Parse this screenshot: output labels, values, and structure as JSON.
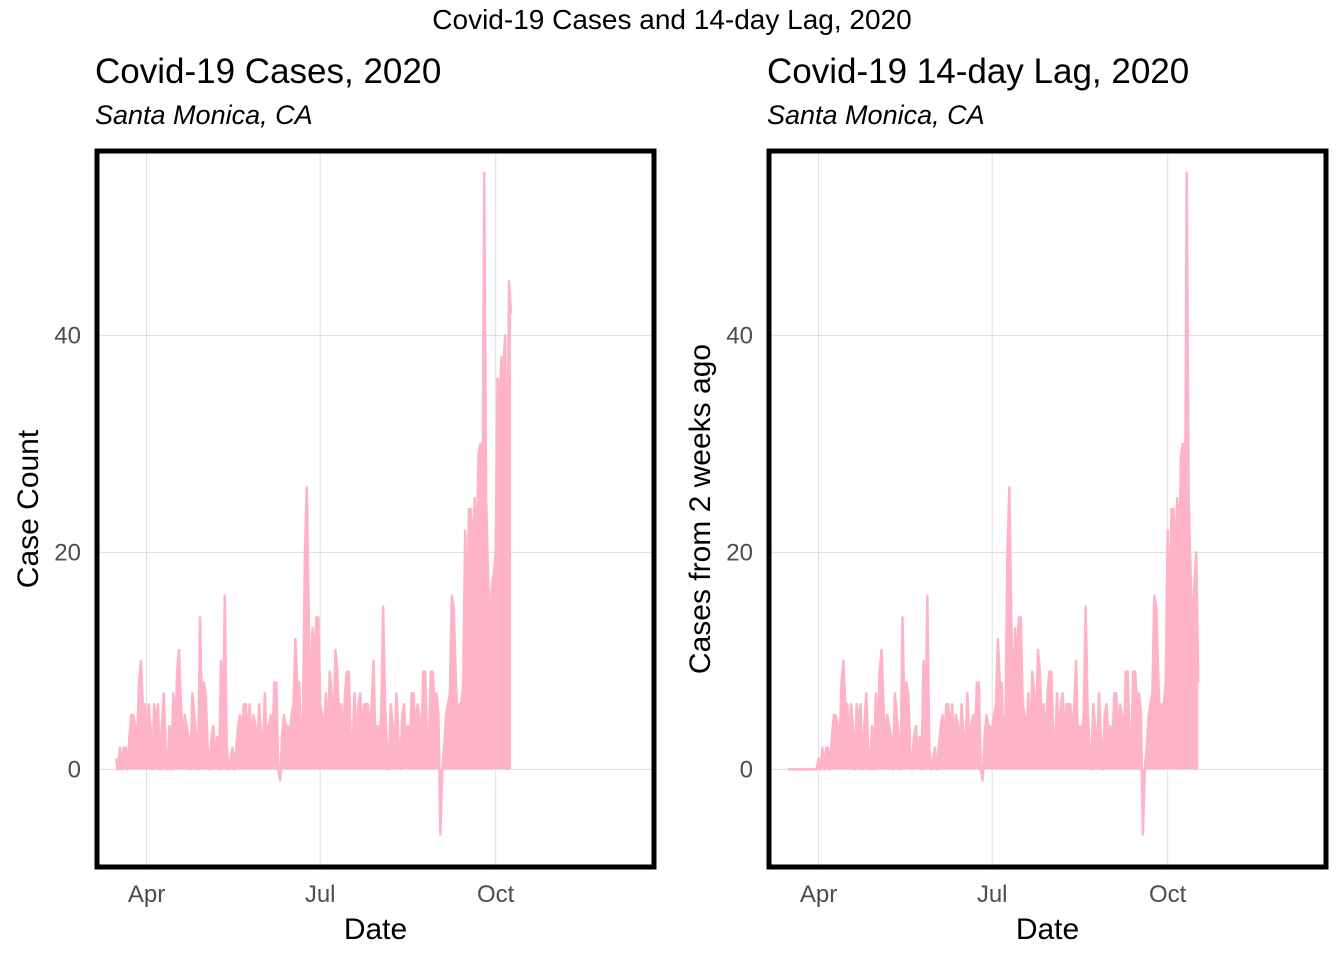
{
  "suptitle": "Covid-19 Cases and 14-day Lag, 2020",
  "colors": {
    "series": "#ffb3c6",
    "grid": "#dddddd",
    "frame": "#000000",
    "tick_text": "#4d4d4d"
  },
  "chart_data": [
    {
      "type": "area",
      "title": "Covid-19 Cases, 2020",
      "subtitle": "Santa Monica, CA",
      "xlabel": "Date",
      "ylabel": "Case Count",
      "xlim": [
        "2020-03-06",
        "2020-12-23"
      ],
      "ylim": [
        -9,
        57
      ],
      "x_ticks": [
        {
          "date": "2020-04-01",
          "label": "Apr"
        },
        {
          "date": "2020-07-01",
          "label": "Jul"
        },
        {
          "date": "2020-10-01",
          "label": "Oct"
        }
      ],
      "y_ticks": [
        0,
        20,
        40
      ],
      "grid": true,
      "series": [
        {
          "start_date": "2020-03-16",
          "values": [
            1,
            0,
            2,
            0,
            2,
            2,
            0,
            3,
            5,
            5,
            4,
            2,
            8,
            10,
            6,
            6,
            2,
            6,
            4,
            0,
            6,
            4,
            6,
            0,
            4,
            7,
            2,
            0,
            4,
            0,
            7,
            3,
            9,
            11,
            6,
            2,
            5,
            4,
            3,
            0,
            7,
            5,
            3,
            0,
            14,
            5,
            8,
            7,
            2,
            0,
            3,
            4,
            1,
            3,
            0,
            10,
            3,
            16,
            2,
            0,
            1,
            2,
            0,
            2,
            4,
            5,
            3,
            6,
            6,
            3,
            6,
            2,
            5,
            4,
            2,
            6,
            3,
            2,
            7,
            2,
            4,
            5,
            3,
            8,
            8,
            0,
            -1,
            3,
            5,
            4,
            4,
            3,
            5,
            6,
            12,
            8,
            8,
            2,
            5,
            20,
            26,
            14,
            5,
            13,
            10,
            14,
            14,
            6,
            5,
            3,
            7,
            2,
            9,
            7,
            3,
            11,
            9,
            4,
            6,
            2,
            7,
            9,
            9,
            3,
            2,
            7,
            2,
            6,
            7,
            3,
            6,
            6,
            6,
            3,
            6,
            10,
            2,
            4,
            3,
            5,
            15,
            6,
            2,
            0,
            6,
            4,
            1,
            7,
            3,
            0,
            5,
            6,
            2,
            4,
            2,
            7,
            7,
            3,
            6,
            5,
            1,
            9,
            9,
            3,
            2,
            9,
            9,
            6,
            7,
            5,
            -6,
            0,
            2,
            5,
            6,
            7,
            16,
            15,
            9,
            4,
            6,
            6,
            8,
            22,
            14,
            24,
            24,
            19,
            25,
            19,
            29,
            30,
            18,
            55,
            25,
            18,
            12,
            17,
            18,
            20,
            36,
            33,
            38,
            37,
            40,
            22,
            45,
            42
          ],
          "line_width": 2.5
        }
      ]
    },
    {
      "type": "area",
      "title": "Covid-19 14-day Lag, 2020",
      "subtitle": "Santa Monica, CA",
      "xlabel": "Date",
      "ylabel": "Cases from 2 weeks ago",
      "xlim": [
        "2020-03-06",
        "2020-12-23"
      ],
      "ylim": [
        -9,
        57
      ],
      "x_ticks": [
        {
          "date": "2020-04-01",
          "label": "Apr"
        },
        {
          "date": "2020-07-01",
          "label": "Jul"
        },
        {
          "date": "2020-10-01",
          "label": "Oct"
        }
      ],
      "y_ticks": [
        0,
        20,
        40
      ],
      "grid": true,
      "series": [
        {
          "start_date": "2020-03-16",
          "values": [
            0,
            0,
            0,
            0,
            0,
            0,
            0,
            0,
            0,
            0,
            0,
            0,
            0,
            0,
            0,
            0,
            1,
            0,
            2,
            0,
            2,
            2,
            0,
            3,
            5,
            5,
            4,
            2,
            8,
            10,
            6,
            6,
            2,
            6,
            4,
            0,
            6,
            4,
            6,
            0,
            4,
            7,
            2,
            0,
            4,
            0,
            7,
            3,
            9,
            11,
            6,
            2,
            5,
            4,
            3,
            0,
            7,
            5,
            3,
            0,
            14,
            5,
            8,
            7,
            2,
            0,
            3,
            4,
            1,
            3,
            0,
            10,
            3,
            16,
            2,
            0,
            1,
            2,
            0,
            2,
            4,
            5,
            3,
            6,
            6,
            3,
            6,
            2,
            5,
            4,
            2,
            6,
            3,
            2,
            7,
            2,
            4,
            5,
            3,
            8,
            8,
            0,
            -1,
            3,
            5,
            4,
            4,
            3,
            5,
            6,
            12,
            8,
            8,
            2,
            5,
            20,
            26,
            14,
            5,
            13,
            10,
            14,
            14,
            6,
            5,
            3,
            7,
            2,
            9,
            7,
            3,
            11,
            9,
            4,
            6,
            2,
            7,
            9,
            9,
            3,
            2,
            7,
            2,
            6,
            7,
            3,
            6,
            6,
            6,
            3,
            6,
            10,
            2,
            4,
            3,
            5,
            15,
            6,
            2,
            0,
            6,
            4,
            1,
            7,
            3,
            0,
            5,
            6,
            2,
            4,
            2,
            7,
            7,
            3,
            6,
            5,
            1,
            9,
            9,
            3,
            2,
            9,
            9,
            6,
            7,
            5,
            -6,
            0,
            2,
            5,
            6,
            7,
            16,
            15,
            9,
            4,
            6,
            6,
            8,
            22,
            14,
            24,
            24,
            19,
            25,
            19,
            29,
            30,
            18,
            55,
            25,
            18,
            12,
            17,
            20,
            8
          ],
          "line_width": 2.5
        }
      ]
    }
  ]
}
